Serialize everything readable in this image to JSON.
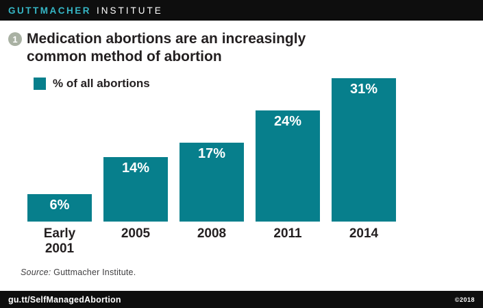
{
  "header": {
    "brand_primary": "GUTTMACHER",
    "brand_secondary": "INSTITUTE"
  },
  "figure": {
    "number": "1",
    "title_line1": "Medication abortions are an increasingly",
    "title_line2": "common method of abortion"
  },
  "legend": {
    "label": "% of all abortions"
  },
  "chart_data": {
    "type": "bar",
    "categories": [
      "Early\n2001",
      "2005",
      "2008",
      "2011",
      "2014"
    ],
    "values": [
      6,
      14,
      17,
      24,
      31
    ],
    "value_labels": [
      "6%",
      "14%",
      "17%",
      "24%",
      "31%"
    ],
    "series_name": "% of all abortions",
    "title": "Medication abortions are an increasingly common method of abortion",
    "xlabel": "",
    "ylabel": "% of all abortions",
    "ylim": [
      0,
      31
    ],
    "grid": false,
    "legend_position": "top-left",
    "bar_color": "#077f8c",
    "value_label_color": "#ffffff"
  },
  "source": {
    "prefix": "Source:",
    "rest": " Guttmacher Institute."
  },
  "footer": {
    "link": "gu.tt/SelfManagedAbortion",
    "copyright": "©2018"
  },
  "colors": {
    "header_bg": "#0e0e0e",
    "brand_teal": "#35b6c5",
    "bar_teal": "#077f8c",
    "badge_gray": "#a9b1a3",
    "text_black": "#231f20"
  }
}
